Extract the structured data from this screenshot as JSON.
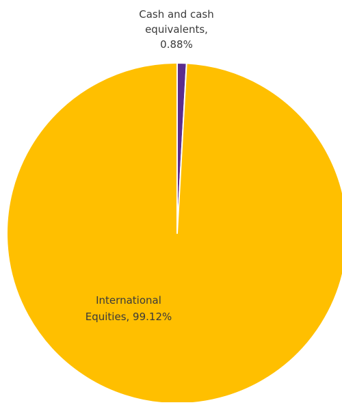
{
  "chart_data": {
    "type": "pie",
    "title": "",
    "legend": "none",
    "slices": [
      {
        "name": "Cash and cash equivalents",
        "value": 0.88,
        "label_lines": [
          "Cash and cash",
          "equivalents,",
          "0.88%"
        ],
        "color": "#5B2D8E"
      },
      {
        "name": "International Equities",
        "value": 99.12,
        "label_lines": [
          "International",
          "Equities, 99.12%"
        ],
        "color": "#FFBF00"
      }
    ]
  },
  "colors": {
    "separator": "#ffffff",
    "label_text": "#3a3a3a"
  }
}
